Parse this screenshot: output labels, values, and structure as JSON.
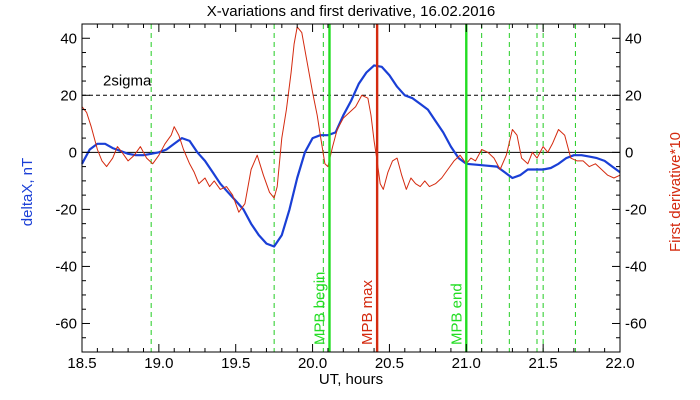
{
  "chart_data": {
    "type": "line",
    "title": "X-variations and first derivative, 16.02.2016",
    "xlabel": "UT, hours",
    "ylabel_left": "deltaX, nT",
    "ylabel_right": "First derivative*10",
    "xlim": [
      18.5,
      22.0
    ],
    "ylim": [
      -70,
      45
    ],
    "x_ticks": [
      18.5,
      19.0,
      19.5,
      20.0,
      20.5,
      21.0,
      21.5,
      22.0
    ],
    "x_tick_labels": [
      "18.5",
      "19.0",
      "19.5",
      "20.0",
      "20.5",
      "21.0",
      "21.5",
      "22.0"
    ],
    "y_ticks": [
      40,
      20,
      0,
      -20,
      -40,
      -60
    ],
    "y_tick_labels_left": [
      "40",
      "20",
      "0",
      "-20",
      "-40",
      "-60"
    ],
    "y_tick_labels_right": [
      "40",
      "20",
      "0",
      "-20",
      "-40",
      "-60"
    ],
    "grid": false,
    "colors": {
      "deltaX": "#1a3fd6",
      "derivative": "#d42a0f",
      "mpb_edges": "#22dd22",
      "mpb_max": "#d42a0f",
      "event_lines": "#22cc22",
      "axis": "#000000"
    },
    "series": [
      {
        "key": "deltaX",
        "axis": "left",
        "points": [
          [
            18.5,
            -4
          ],
          [
            18.55,
            1
          ],
          [
            18.6,
            3
          ],
          [
            18.65,
            3
          ],
          [
            18.7,
            1.5
          ],
          [
            18.75,
            0.5
          ],
          [
            18.8,
            -0.5
          ],
          [
            18.85,
            -1
          ],
          [
            18.9,
            -1
          ],
          [
            18.95,
            -0.5
          ],
          [
            19.0,
            0
          ],
          [
            19.05,
            1
          ],
          [
            19.1,
            3
          ],
          [
            19.15,
            5
          ],
          [
            19.2,
            4
          ],
          [
            19.25,
            0
          ],
          [
            19.3,
            -3
          ],
          [
            19.35,
            -7
          ],
          [
            19.4,
            -11
          ],
          [
            19.45,
            -14
          ],
          [
            19.5,
            -17
          ],
          [
            19.55,
            -20
          ],
          [
            19.6,
            -25
          ],
          [
            19.65,
            -29
          ],
          [
            19.7,
            -32
          ],
          [
            19.75,
            -33
          ],
          [
            19.8,
            -29
          ],
          [
            19.85,
            -20
          ],
          [
            19.9,
            -9
          ],
          [
            19.95,
            0
          ],
          [
            20.0,
            5
          ],
          [
            20.05,
            6
          ],
          [
            20.1,
            6
          ],
          [
            20.15,
            7
          ],
          [
            20.2,
            13
          ],
          [
            20.25,
            18
          ],
          [
            20.3,
            24
          ],
          [
            20.35,
            28
          ],
          [
            20.4,
            30.5
          ],
          [
            20.45,
            30
          ],
          [
            20.5,
            27
          ],
          [
            20.55,
            23
          ],
          [
            20.6,
            20
          ],
          [
            20.65,
            19
          ],
          [
            20.7,
            17
          ],
          [
            20.75,
            15
          ],
          [
            20.8,
            11
          ],
          [
            20.85,
            7
          ],
          [
            20.9,
            2
          ],
          [
            20.95,
            -2
          ],
          [
            21.0,
            -4
          ],
          [
            21.1,
            -4.5
          ],
          [
            21.2,
            -5
          ],
          [
            21.25,
            -7
          ],
          [
            21.3,
            -9
          ],
          [
            21.35,
            -8
          ],
          [
            21.4,
            -6
          ],
          [
            21.5,
            -6
          ],
          [
            21.55,
            -5.5
          ],
          [
            21.6,
            -4
          ],
          [
            21.65,
            -2
          ],
          [
            21.7,
            -1
          ],
          [
            21.75,
            -1
          ],
          [
            21.8,
            -1.5
          ],
          [
            21.85,
            -2
          ],
          [
            21.9,
            -3
          ],
          [
            21.95,
            -5
          ],
          [
            22.0,
            -7
          ]
        ]
      },
      {
        "key": "derivative",
        "axis": "right",
        "points": [
          [
            18.5,
            16
          ],
          [
            18.53,
            14
          ],
          [
            18.56,
            9
          ],
          [
            18.6,
            1
          ],
          [
            18.63,
            -3
          ],
          [
            18.66,
            -5
          ],
          [
            18.7,
            -2
          ],
          [
            18.73,
            2
          ],
          [
            18.76,
            0
          ],
          [
            18.8,
            -3
          ],
          [
            18.84,
            -1
          ],
          [
            18.88,
            2
          ],
          [
            18.92,
            -2
          ],
          [
            18.96,
            -4
          ],
          [
            19.0,
            -1
          ],
          [
            19.04,
            3
          ],
          [
            19.08,
            6
          ],
          [
            19.1,
            9
          ],
          [
            19.13,
            6
          ],
          [
            19.16,
            1
          ],
          [
            19.2,
            -4
          ],
          [
            19.23,
            -7
          ],
          [
            19.26,
            -11
          ],
          [
            19.3,
            -9
          ],
          [
            19.33,
            -12
          ],
          [
            19.36,
            -10
          ],
          [
            19.4,
            -13
          ],
          [
            19.44,
            -12
          ],
          [
            19.48,
            -15
          ],
          [
            19.52,
            -21
          ],
          [
            19.56,
            -18
          ],
          [
            19.6,
            -6
          ],
          [
            19.64,
            -1
          ],
          [
            19.68,
            -8
          ],
          [
            19.72,
            -14
          ],
          [
            19.75,
            -16
          ],
          [
            19.77,
            -12
          ],
          [
            19.8,
            5
          ],
          [
            19.83,
            15
          ],
          [
            19.86,
            28
          ],
          [
            19.88,
            38
          ],
          [
            19.9,
            44
          ],
          [
            19.93,
            42
          ],
          [
            19.96,
            33
          ],
          [
            20.0,
            21
          ],
          [
            20.03,
            13
          ],
          [
            20.05,
            6
          ],
          [
            20.08,
            -4
          ],
          [
            20.1,
            -5
          ],
          [
            20.13,
            2
          ],
          [
            20.16,
            8
          ],
          [
            20.2,
            12
          ],
          [
            20.24,
            14
          ],
          [
            20.28,
            16
          ],
          [
            20.32,
            20
          ],
          [
            20.36,
            19
          ],
          [
            20.38,
            13
          ],
          [
            20.4,
            4
          ],
          [
            20.42,
            -3
          ],
          [
            20.44,
            -11
          ],
          [
            20.46,
            -13
          ],
          [
            20.49,
            -7
          ],
          [
            20.52,
            -3
          ],
          [
            20.55,
            -2
          ],
          [
            20.58,
            -8
          ],
          [
            20.61,
            -13
          ],
          [
            20.64,
            -9
          ],
          [
            20.67,
            -11
          ],
          [
            20.7,
            -12
          ],
          [
            20.73,
            -10
          ],
          [
            20.76,
            -12
          ],
          [
            20.8,
            -11
          ],
          [
            20.84,
            -9
          ],
          [
            20.88,
            -6
          ],
          [
            20.92,
            -3
          ],
          [
            20.96,
            -1
          ],
          [
            21.0,
            -4
          ],
          [
            21.03,
            -2
          ],
          [
            21.06,
            -3
          ],
          [
            21.1,
            1
          ],
          [
            21.14,
            0
          ],
          [
            21.18,
            -2
          ],
          [
            21.22,
            -6
          ],
          [
            21.26,
            -1
          ],
          [
            21.3,
            8
          ],
          [
            21.33,
            6
          ],
          [
            21.36,
            -2
          ],
          [
            21.4,
            -4
          ],
          [
            21.43,
            0
          ],
          [
            21.46,
            -2
          ],
          [
            21.5,
            2
          ],
          [
            21.53,
            0
          ],
          [
            21.56,
            3
          ],
          [
            21.6,
            8
          ],
          [
            21.64,
            6
          ],
          [
            21.68,
            -2
          ],
          [
            21.72,
            -3
          ],
          [
            21.76,
            -3
          ],
          [
            21.8,
            -5
          ],
          [
            21.84,
            -4
          ],
          [
            21.88,
            -6
          ],
          [
            21.92,
            -8
          ],
          [
            21.96,
            -9
          ],
          [
            22.0,
            -8
          ]
        ]
      }
    ],
    "reference_lines": [
      {
        "key": "zero",
        "y": 0,
        "style": "solid",
        "label": ""
      },
      {
        "key": "sigma",
        "y": 20,
        "style": "dashed",
        "label": "2sigma"
      }
    ],
    "event_lines": [
      18.95,
      19.75,
      20.07,
      21.1,
      21.28,
      21.46,
      21.5,
      21.71
    ],
    "markers": [
      {
        "key": "mpb_begin",
        "x": 20.11,
        "label": "MPB begin",
        "color": "#22dd22"
      },
      {
        "key": "mpb_max",
        "x": 20.42,
        "label": "MPB max",
        "color": "#d42a0f"
      },
      {
        "key": "mpb_end",
        "x": 21.0,
        "label": "MPB end",
        "color": "#22dd22"
      }
    ]
  }
}
